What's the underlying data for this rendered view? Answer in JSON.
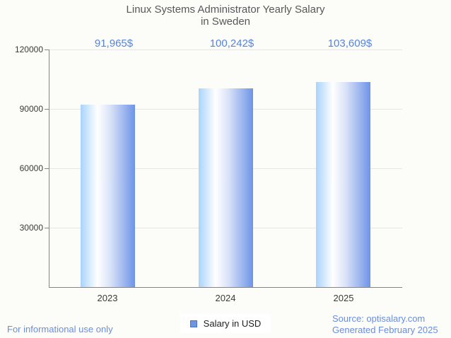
{
  "header": {
    "title_line1": "Linux Systems Administrator Yearly Salary",
    "title_line2": "in Sweden"
  },
  "chart_data": {
    "type": "bar",
    "title": "Linux Systems Administrator Yearly Salary in Sweden",
    "categories": [
      "2023",
      "2024",
      "2025"
    ],
    "series": [
      {
        "name": "Salary in USD",
        "values": [
          91965,
          100242,
          103609
        ]
      }
    ],
    "value_labels": [
      "91,965$",
      "100,242$",
      "103,609$"
    ],
    "xlabel": "",
    "ylabel": "",
    "ylim": [
      0,
      120000
    ],
    "yticks": [
      30000,
      60000,
      90000,
      120000
    ],
    "ytick_labels": [
      "30000",
      "60000",
      "90000",
      "120000"
    ],
    "grid": true,
    "legend_position": "bottom"
  },
  "legend": {
    "label": "Salary in USD"
  },
  "footer": {
    "disclaimer": "For informational use only",
    "source_line1": "Source: optisalary.com",
    "source_line2": "Generated February 2025"
  },
  "colors": {
    "background": "#FCFCF9",
    "bar_gradient_left": "#A9D3FB",
    "bar_gradient_white": "#FFFFFF",
    "bar_gradient_mid": "#D9E2F7",
    "bar_gradient_right": "#6D94E8",
    "value_label_text": "#5584DB",
    "footer_text": "#6A8EDF",
    "axis_line": "#858585",
    "gridline": "#E6E6E6",
    "title_text": "#58585A",
    "tick_label_text": "#3A3A3A",
    "legend_swatch": "#6E95E3"
  }
}
